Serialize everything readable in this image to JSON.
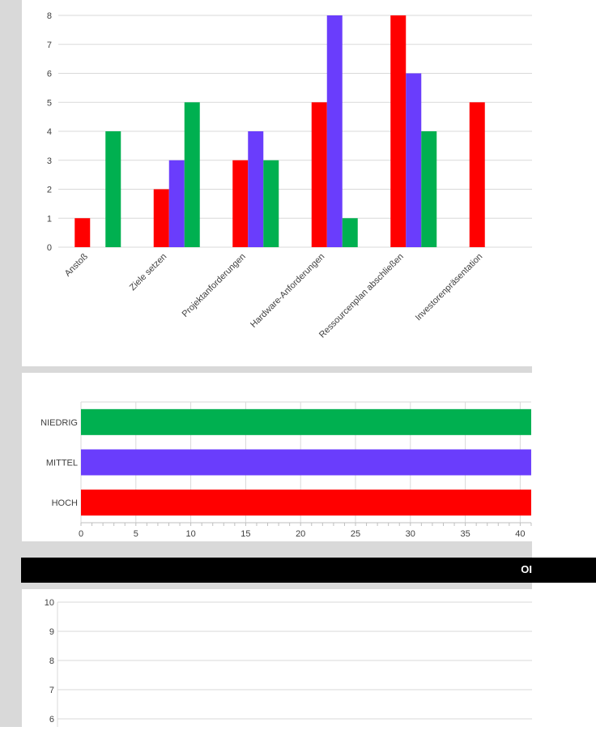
{
  "colors": {
    "high": "#ff0000",
    "medium": "#6a3dfc",
    "low": "#00b050",
    "grid": "#d9d9d9",
    "axis_text": "#404040"
  },
  "dark_bar": {
    "text": "OI"
  },
  "chart_data": [
    {
      "type": "bar",
      "orientation": "vertical",
      "categories": [
        "Anstoß",
        "Ziele setzen",
        "Projektanforderungen",
        "Hardware-Anforderungen",
        "Ressourcenplan abschließen",
        "Investorenpräsentation"
      ],
      "series": [
        {
          "values": [
            1,
            2,
            3,
            5,
            8,
            5
          ],
          "color": "#ff0000"
        },
        {
          "values": [
            0,
            3,
            4,
            8,
            6,
            0
          ],
          "color": "#6a3dfc"
        },
        {
          "values": [
            4,
            5,
            3,
            1,
            4,
            0
          ],
          "color": "#00b050"
        }
      ],
      "ylim": [
        0,
        8
      ],
      "yticks": [
        0,
        1,
        2,
        3,
        4,
        5,
        6,
        7,
        8
      ],
      "grid": true
    },
    {
      "type": "bar",
      "orientation": "horizontal",
      "categories": [
        "NIEDRIG",
        "MITTEL",
        "HOCH"
      ],
      "values": [
        41,
        41,
        41
      ],
      "colors": [
        "#00b050",
        "#6a3dfc",
        "#ff0000"
      ],
      "xlim": [
        0,
        41
      ],
      "xticks": [
        0,
        5,
        10,
        15,
        20,
        25,
        30,
        35,
        40
      ],
      "grid": true
    },
    {
      "type": "line",
      "series": [],
      "ylim": [
        6,
        10
      ],
      "yticks": [
        6,
        7,
        8,
        9,
        10
      ],
      "grid": true
    }
  ]
}
